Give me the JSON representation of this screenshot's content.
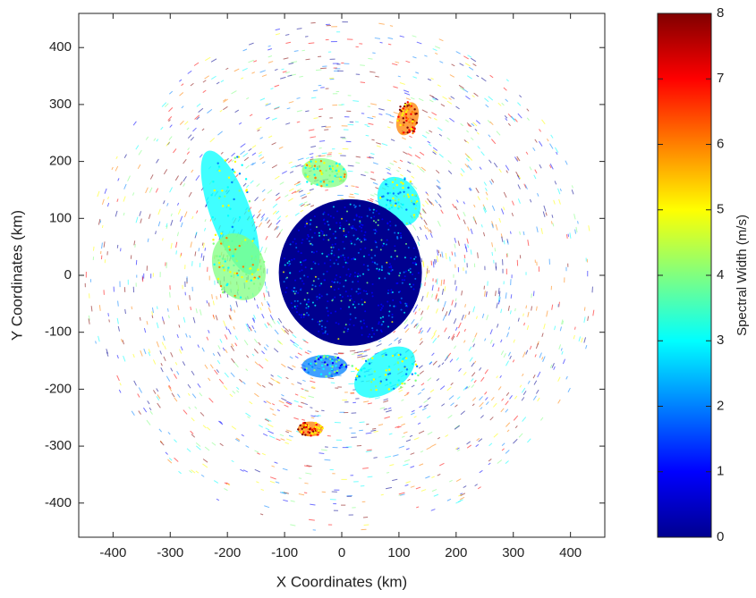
{
  "chart_data": {
    "type": "radar-image",
    "x_label": "X Coordinates (km)",
    "y_label": "Y Coordinates (km)",
    "xlim": [
      -460,
      460
    ],
    "ylim": [
      -460,
      460
    ],
    "xticks": [
      -400,
      -300,
      -200,
      -100,
      0,
      100,
      200,
      300,
      400
    ],
    "yticks": [
      -400,
      -300,
      -200,
      -100,
      0,
      100,
      200,
      300,
      400
    ],
    "colorbar": {
      "label": "Spectral Width (m/s)",
      "lim": [
        0,
        8
      ],
      "ticks": [
        0,
        1,
        2,
        3,
        4,
        5,
        6,
        7,
        8
      ],
      "colormap": [
        "#00008f",
        "#0000ff",
        "#0080ff",
        "#00ffff",
        "#80ff80",
        "#ffff00",
        "#ff8000",
        "#ff0000",
        "#800000"
      ]
    }
  }
}
